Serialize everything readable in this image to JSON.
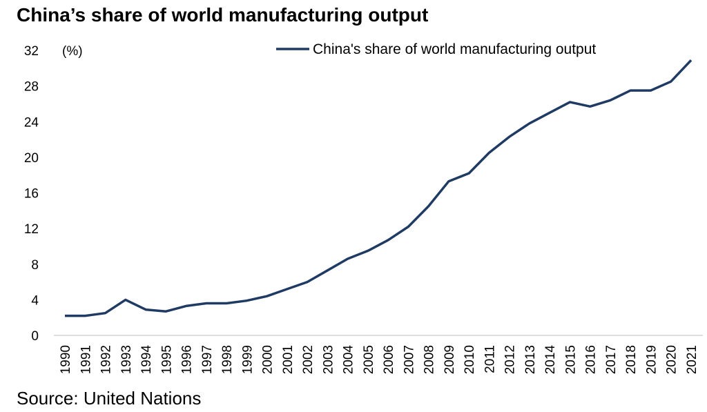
{
  "title": "China’s share of world manufacturing output",
  "source": "Source: United Nations",
  "chart_data": {
    "type": "line",
    "title": "China’s share of world manufacturing output",
    "unit_label": "(%)",
    "xlabel": "",
    "ylabel": "(%)",
    "ylim": [
      0,
      32
    ],
    "yticks": [
      0,
      4,
      8,
      12,
      16,
      20,
      24,
      28,
      32
    ],
    "grid": false,
    "legend_position": "top-right",
    "line_color": "#1f3a63",
    "categories": [
      "1990",
      "1991",
      "1992",
      "1993",
      "1994",
      "1995",
      "1996",
      "1997",
      "1998",
      "1999",
      "2000",
      "2001",
      "2002",
      "2003",
      "2004",
      "2005",
      "2006",
      "2007",
      "2008",
      "2009",
      "2010",
      "2011",
      "2012",
      "2013",
      "2014",
      "2015",
      "2016",
      "2017",
      "2018",
      "2019",
      "2020",
      "2021"
    ],
    "series": [
      {
        "name": "China's share of world manufacturing output",
        "values": [
          2.2,
          2.2,
          2.5,
          4.0,
          2.9,
          2.7,
          3.3,
          3.6,
          3.6,
          3.9,
          4.4,
          5.2,
          6.0,
          7.3,
          8.6,
          9.5,
          10.7,
          12.2,
          14.5,
          17.3,
          18.2,
          20.5,
          22.3,
          23.8,
          25.0,
          26.2,
          25.7,
          26.4,
          27.5,
          27.5,
          28.5,
          30.9
        ]
      }
    ]
  }
}
